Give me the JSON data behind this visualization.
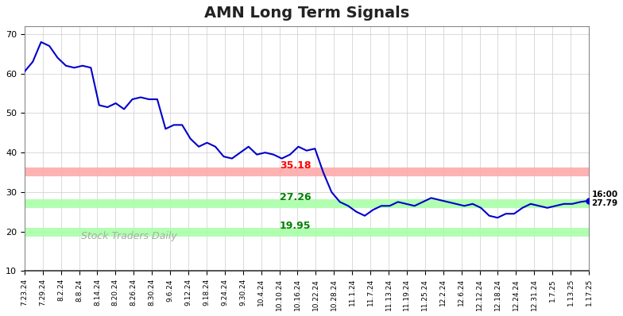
{
  "title": "AMN Long Term Signals",
  "background_color": "#ffffff",
  "grid_color": "#cccccc",
  "line_color": "#0000cc",
  "line_width": 1.5,
  "ylim": [
    10,
    72
  ],
  "yticks": [
    10,
    20,
    30,
    40,
    50,
    60,
    70
  ],
  "red_line": 35.18,
  "green_line1": 27.26,
  "green_line2": 19.95,
  "red_line_color": "#ffaaaa",
  "green_line1_color": "#aaffaa",
  "green_line2_color": "#aaffaa",
  "red_label": "35.18",
  "green_label1": "27.26",
  "green_label2": "19.95",
  "watermark": "Stock Traders Daily",
  "last_label": "16:00\n27.79",
  "last_value": 27.79,
  "xtick_labels": [
    "7.23.24",
    "7.29.24",
    "8.2.24",
    "8.8.24",
    "8.14.24",
    "8.20.24",
    "8.26.24",
    "8.30.24",
    "9.6.24",
    "9.12.24",
    "9.18.24",
    "9.24.24",
    "9.30.24",
    "10.4.24",
    "10.10.24",
    "10.16.24",
    "10.22.24",
    "10.28.24",
    "11.1.24",
    "11.7.24",
    "11.13.24",
    "11.19.24",
    "11.25.24",
    "12.2.24",
    "12.6.24",
    "12.12.24",
    "12.18.24",
    "12.24.24",
    "12.31.24",
    "1.7.25",
    "1.13.25",
    "1.17.25"
  ],
  "prices": [
    60.5,
    63.0,
    68.0,
    67.0,
    64.0,
    62.0,
    61.5,
    62.0,
    61.5,
    52.0,
    51.5,
    52.5,
    51.0,
    53.5,
    54.0,
    53.5,
    53.5,
    46.0,
    47.0,
    47.0,
    43.5,
    41.5,
    42.5,
    41.5,
    39.0,
    38.5,
    40.0,
    41.5,
    39.5,
    40.0,
    39.5,
    38.5,
    39.5,
    41.5,
    40.5,
    41.0,
    35.0,
    30.0,
    27.5,
    26.5,
    25.0,
    24.0,
    25.5,
    26.5,
    26.5,
    27.5,
    27.0,
    26.5,
    27.5,
    28.5,
    28.0,
    27.5,
    27.0,
    26.5,
    27.0,
    26.0,
    24.0,
    23.5,
    24.5,
    24.5,
    26.0,
    27.0,
    26.5,
    26.0,
    26.5,
    27.0,
    27.0,
    27.5,
    27.79
  ]
}
